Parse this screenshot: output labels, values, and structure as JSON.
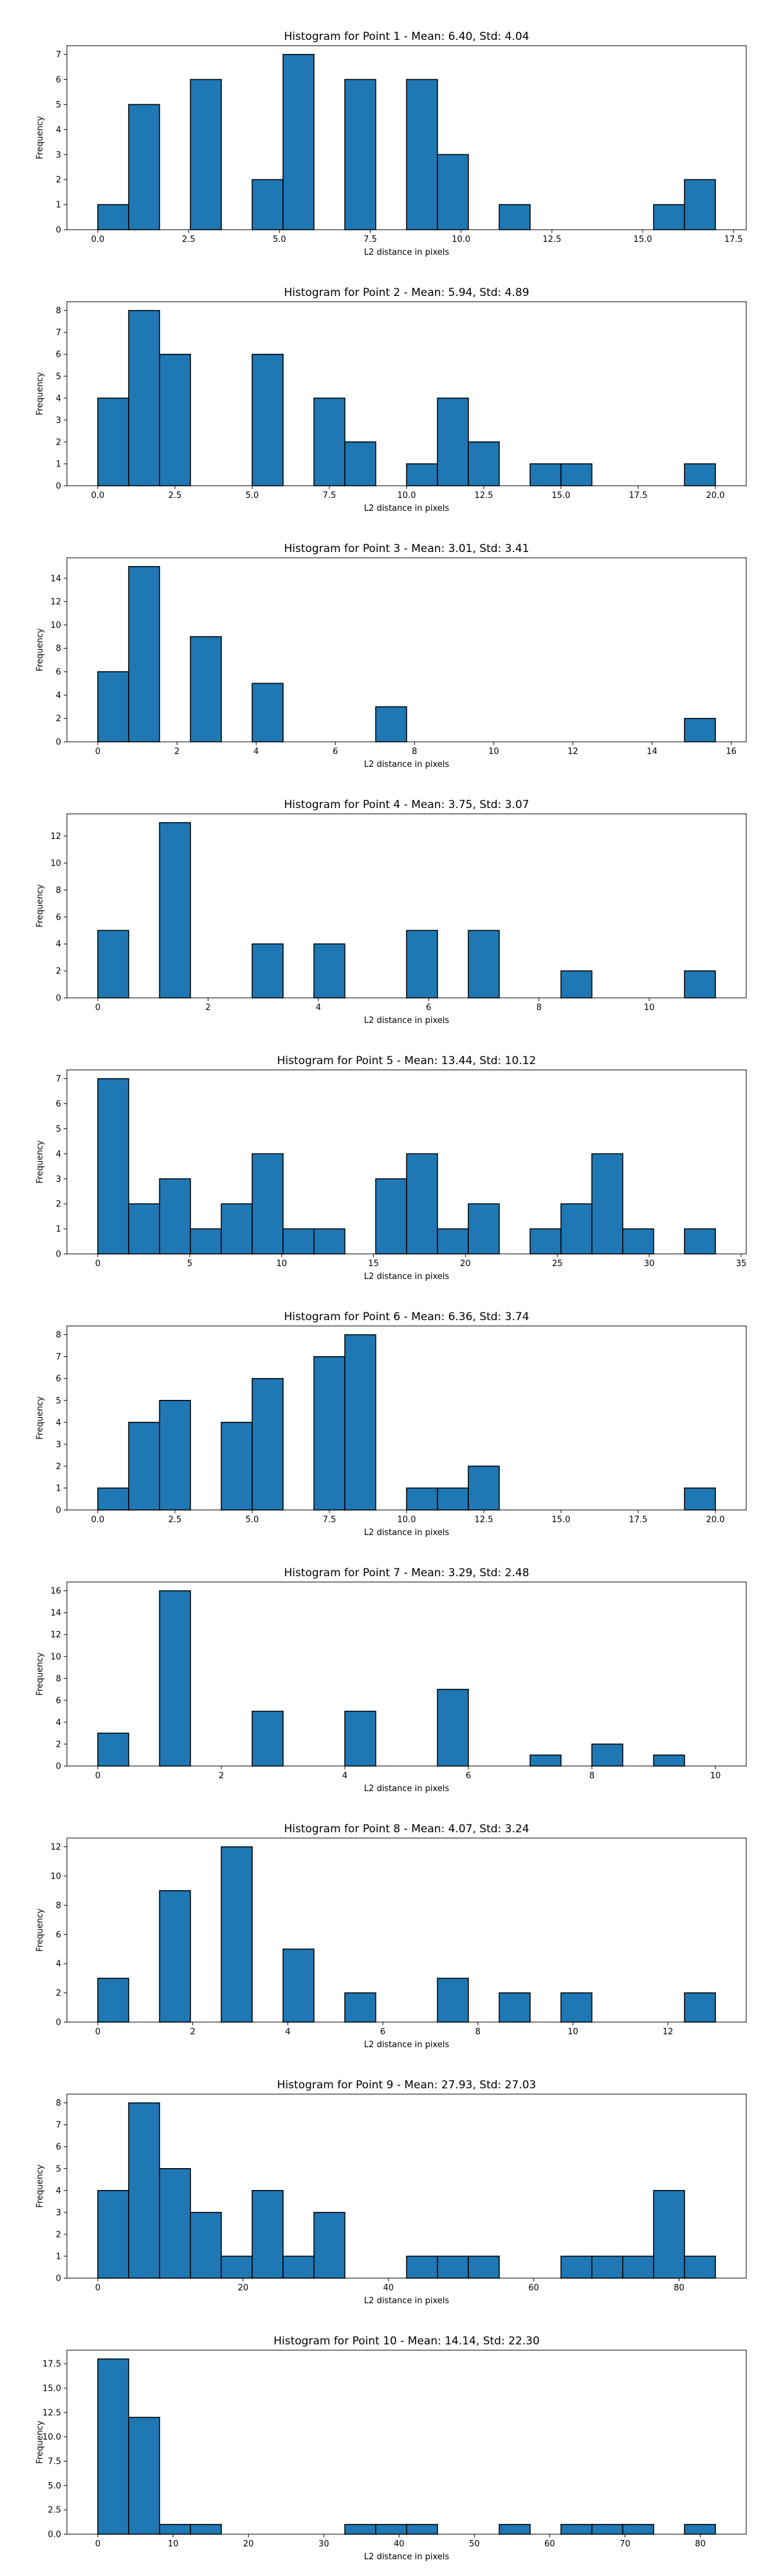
{
  "chart_data": [
    {
      "type": "bar",
      "title": "Histogram for Point 1 - Mean: 6.40, Std: 4.04",
      "xlabel": "L2 distance in pixels",
      "ylabel": "Frequency",
      "xlim": [
        -0.85,
        17.85
      ],
      "ylim": [
        0,
        7.35
      ],
      "xticks": [
        0.0,
        2.5,
        5.0,
        7.5,
        10.0,
        12.5,
        15.0,
        17.5
      ],
      "xtick_labels": [
        "0.0",
        "2.5",
        "5.0",
        "7.5",
        "10.0",
        "12.5",
        "15.0",
        "17.5"
      ],
      "yticks": [
        0,
        1,
        2,
        3,
        4,
        5,
        6,
        7
      ],
      "ytick_labels": [
        "0",
        "1",
        "2",
        "3",
        "4",
        "5",
        "6",
        "7"
      ],
      "bin_edges": [
        0.0,
        0.85,
        1.7,
        2.55,
        3.4,
        4.25,
        5.1,
        5.95,
        6.8,
        7.65,
        8.5,
        9.35,
        10.2,
        11.05,
        11.9,
        12.75,
        13.6,
        14.45,
        15.3,
        16.15,
        17.0
      ],
      "values": [
        1,
        5,
        0,
        6,
        0,
        2,
        7,
        0,
        6,
        0,
        6,
        3,
        0,
        1,
        0,
        0,
        0,
        0,
        1,
        2
      ]
    },
    {
      "type": "bar",
      "title": "Histogram for Point 2 - Mean: 5.94, Std: 4.89",
      "xlabel": "L2 distance in pixels",
      "ylabel": "Frequency",
      "xlim": [
        -1.0,
        21.0
      ],
      "ylim": [
        0,
        8.4
      ],
      "xticks": [
        0.0,
        2.5,
        5.0,
        7.5,
        10.0,
        12.5,
        15.0,
        17.5,
        20.0
      ],
      "xtick_labels": [
        "0.0",
        "2.5",
        "5.0",
        "7.5",
        "10.0",
        "12.5",
        "15.0",
        "17.5",
        "20.0"
      ],
      "yticks": [
        0,
        1,
        2,
        3,
        4,
        5,
        6,
        7,
        8
      ],
      "ytick_labels": [
        "0",
        "1",
        "2",
        "3",
        "4",
        "5",
        "6",
        "7",
        "8"
      ],
      "bin_edges": [
        0.0,
        1.0,
        2.0,
        3.0,
        4.0,
        5.0,
        6.0,
        7.0,
        8.0,
        9.0,
        10.0,
        11.0,
        12.0,
        13.0,
        14.0,
        15.0,
        16.0,
        17.0,
        18.0,
        19.0,
        20.0
      ],
      "values": [
        4,
        8,
        6,
        0,
        0,
        6,
        0,
        4,
        2,
        0,
        1,
        4,
        2,
        0,
        1,
        1,
        0,
        0,
        0,
        1
      ]
    },
    {
      "type": "bar",
      "title": "Histogram for Point 3 - Mean: 3.01, Std: 3.41",
      "xlabel": "L2 distance in pixels",
      "ylabel": "Frequency",
      "xlim": [
        -0.78,
        16.38
      ],
      "ylim": [
        0,
        15.75
      ],
      "xticks": [
        0,
        2,
        4,
        6,
        8,
        10,
        12,
        14,
        16
      ],
      "xtick_labels": [
        "0",
        "2",
        "4",
        "6",
        "8",
        "10",
        "12",
        "14",
        "16"
      ],
      "yticks": [
        0,
        2,
        4,
        6,
        8,
        10,
        12,
        14
      ],
      "ytick_labels": [
        "0",
        "2",
        "4",
        "6",
        "8",
        "10",
        "12",
        "14"
      ],
      "bin_edges": [
        0.0,
        0.78,
        1.56,
        2.34,
        3.12,
        3.9,
        4.68,
        5.46,
        6.24,
        7.02,
        7.8,
        8.58,
        9.36,
        10.14,
        10.92,
        11.7,
        12.48,
        13.26,
        14.04,
        14.82,
        15.6
      ],
      "values": [
        6,
        15,
        0,
        9,
        0,
        5,
        0,
        0,
        0,
        3,
        0,
        0,
        0,
        0,
        0,
        0,
        0,
        0,
        0,
        2
      ]
    },
    {
      "type": "bar",
      "title": "Histogram for Point 4 - Mean: 3.75, Std: 3.07",
      "xlabel": "L2 distance in pixels",
      "ylabel": "Frequency",
      "xlim": [
        -0.56,
        11.76
      ],
      "ylim": [
        0,
        13.65
      ],
      "xticks": [
        0,
        2,
        4,
        6,
        8,
        10
      ],
      "xtick_labels": [
        "0",
        "2",
        "4",
        "6",
        "8",
        "10"
      ],
      "yticks": [
        0,
        2,
        4,
        6,
        8,
        10,
        12
      ],
      "ytick_labels": [
        "0",
        "2",
        "4",
        "6",
        "8",
        "10",
        "12"
      ],
      "bin_edges": [
        0.0,
        0.56,
        1.12,
        1.68,
        2.24,
        2.8,
        3.36,
        3.92,
        4.48,
        5.04,
        5.6,
        6.16,
        6.72,
        7.28,
        7.84,
        8.4,
        8.96,
        9.52,
        10.08,
        10.64,
        11.2
      ],
      "values": [
        5,
        0,
        13,
        0,
        0,
        4,
        0,
        4,
        0,
        0,
        5,
        0,
        5,
        0,
        0,
        2,
        0,
        0,
        0,
        2
      ]
    },
    {
      "type": "bar",
      "title": "Histogram for Point 5 - Mean: 13.44, Std: 10.12",
      "xlabel": "L2 distance in pixels",
      "ylabel": "Frequency",
      "xlim": [
        -1.68,
        35.28
      ],
      "ylim": [
        0,
        7.35
      ],
      "xticks": [
        0,
        5,
        10,
        15,
        20,
        25,
        30,
        35
      ],
      "xtick_labels": [
        "0",
        "5",
        "10",
        "15",
        "20",
        "25",
        "30",
        "35"
      ],
      "yticks": [
        0,
        1,
        2,
        3,
        4,
        5,
        6,
        7
      ],
      "ytick_labels": [
        "0",
        "1",
        "2",
        "3",
        "4",
        "5",
        "6",
        "7"
      ],
      "bin_edges": [
        0.0,
        1.68,
        3.36,
        5.04,
        6.72,
        8.4,
        10.08,
        11.76,
        13.44,
        15.12,
        16.8,
        18.48,
        20.16,
        21.84,
        23.52,
        25.2,
        26.88,
        28.56,
        30.24,
        31.92,
        33.6
      ],
      "values": [
        7,
        2,
        3,
        1,
        2,
        4,
        1,
        1,
        0,
        3,
        4,
        1,
        2,
        0,
        1,
        2,
        4,
        1,
        0,
        1
      ]
    },
    {
      "type": "bar",
      "title": "Histogram for Point 6 - Mean: 6.36, Std: 3.74",
      "xlabel": "L2 distance in pixels",
      "ylabel": "Frequency",
      "xlim": [
        -1.0,
        21.0
      ],
      "ylim": [
        0,
        8.4
      ],
      "xticks": [
        0.0,
        2.5,
        5.0,
        7.5,
        10.0,
        12.5,
        15.0,
        17.5,
        20.0
      ],
      "xtick_labels": [
        "0.0",
        "2.5",
        "5.0",
        "7.5",
        "10.0",
        "12.5",
        "15.0",
        "17.5",
        "20.0"
      ],
      "yticks": [
        0,
        1,
        2,
        3,
        4,
        5,
        6,
        7,
        8
      ],
      "ytick_labels": [
        "0",
        "1",
        "2",
        "3",
        "4",
        "5",
        "6",
        "7",
        "8"
      ],
      "bin_edges": [
        0.0,
        1.0,
        2.0,
        3.0,
        4.0,
        5.0,
        6.0,
        7.0,
        8.0,
        9.0,
        10.0,
        11.0,
        12.0,
        13.0,
        14.0,
        15.0,
        16.0,
        17.0,
        18.0,
        19.0,
        20.0
      ],
      "values": [
        1,
        4,
        5,
        0,
        4,
        6,
        0,
        7,
        8,
        0,
        1,
        1,
        2,
        0,
        0,
        0,
        0,
        0,
        0,
        1
      ]
    },
    {
      "type": "bar",
      "title": "Histogram for Point 7 - Mean: 3.29, Std: 2.48",
      "xlabel": "L2 distance in pixels",
      "ylabel": "Frequency",
      "xlim": [
        -0.5,
        10.5
      ],
      "ylim": [
        0,
        16.8
      ],
      "xticks": [
        0,
        2,
        4,
        6,
        8,
        10
      ],
      "xtick_labels": [
        "0",
        "2",
        "4",
        "6",
        "8",
        "10"
      ],
      "yticks": [
        0,
        2,
        4,
        6,
        8,
        10,
        12,
        14,
        16
      ],
      "ytick_labels": [
        "0",
        "2",
        "4",
        "6",
        "8",
        "10",
        "12",
        "14",
        "16"
      ],
      "bin_edges": [
        0.0,
        0.5,
        1.0,
        1.5,
        2.0,
        2.5,
        3.0,
        3.5,
        4.0,
        4.5,
        5.0,
        5.5,
        6.0,
        6.5,
        7.0,
        7.5,
        8.0,
        8.5,
        9.0,
        9.5,
        10.0
      ],
      "values": [
        3,
        0,
        16,
        0,
        0,
        5,
        0,
        0,
        5,
        0,
        0,
        7,
        0,
        0,
        1,
        0,
        2,
        0,
        1,
        0
      ]
    },
    {
      "type": "bar",
      "title": "Histogram for Point 8 - Mean: 4.07, Std: 3.24",
      "xlabel": "L2 distance in pixels",
      "ylabel": "Frequency",
      "xlim": [
        -0.65,
        13.65
      ],
      "ylim": [
        0,
        12.6
      ],
      "xticks": [
        0,
        2,
        4,
        6,
        8,
        10,
        12
      ],
      "xtick_labels": [
        "0",
        "2",
        "4",
        "6",
        "8",
        "10",
        "12"
      ],
      "yticks": [
        0,
        2,
        4,
        6,
        8,
        10,
        12
      ],
      "ytick_labels": [
        "0",
        "2",
        "4",
        "6",
        "8",
        "10",
        "12"
      ],
      "bin_edges": [
        0.0,
        0.65,
        1.3,
        1.95,
        2.6,
        3.25,
        3.9,
        4.55,
        5.2,
        5.85,
        6.5,
        7.15,
        7.8,
        8.45,
        9.1,
        9.75,
        10.4,
        11.05,
        11.7,
        12.35,
        13.0
      ],
      "values": [
        3,
        0,
        9,
        0,
        12,
        0,
        5,
        0,
        2,
        0,
        0,
        3,
        0,
        2,
        0,
        2,
        0,
        0,
        0,
        2
      ]
    },
    {
      "type": "bar",
      "title": "Histogram for Point 9 - Mean: 27.93, Std: 27.03",
      "xlabel": "L2 distance in pixels",
      "ylabel": "Frequency",
      "xlim": [
        -4.25,
        89.25
      ],
      "ylim": [
        0,
        8.4
      ],
      "xticks": [
        0,
        20,
        40,
        60,
        80
      ],
      "xtick_labels": [
        "0",
        "20",
        "40",
        "60",
        "80"
      ],
      "yticks": [
        0,
        1,
        2,
        3,
        4,
        5,
        6,
        7,
        8
      ],
      "ytick_labels": [
        "0",
        "1",
        "2",
        "3",
        "4",
        "5",
        "6",
        "7",
        "8"
      ],
      "bin_edges": [
        0.0,
        4.25,
        8.5,
        12.75,
        17.0,
        21.25,
        25.5,
        29.75,
        34.0,
        38.25,
        42.5,
        46.75,
        51.0,
        55.25,
        59.5,
        63.75,
        68.0,
        72.25,
        76.5,
        80.75,
        85.0
      ],
      "values": [
        4,
        8,
        5,
        3,
        1,
        4,
        1,
        3,
        0,
        0,
        1,
        1,
        1,
        0,
        0,
        1,
        1,
        1,
        4,
        1
      ]
    },
    {
      "type": "bar",
      "title": "Histogram for Point 10 - Mean: 14.14, Std: 22.30",
      "xlabel": "L2 distance in pixels",
      "ylabel": "Frequency",
      "xlim": [
        -4.1,
        86.1
      ],
      "ylim": [
        0,
        18.9
      ],
      "xticks": [
        0,
        10,
        20,
        30,
        40,
        50,
        60,
        70,
        80
      ],
      "xtick_labels": [
        "0",
        "10",
        "20",
        "30",
        "40",
        "50",
        "60",
        "70",
        "80"
      ],
      "yticks": [
        0,
        2.5,
        5.0,
        7.5,
        10.0,
        12.5,
        15.0,
        17.5
      ],
      "ytick_labels": [
        "0.0",
        "2.5",
        "5.0",
        "7.5",
        "10.0",
        "12.5",
        "15.0",
        "17.5"
      ],
      "bin_edges": [
        0.0,
        4.1,
        8.2,
        12.3,
        16.4,
        20.5,
        24.6,
        28.7,
        32.8,
        36.9,
        41.0,
        45.1,
        49.2,
        53.3,
        57.4,
        61.5,
        65.6,
        69.7,
        73.8,
        77.9,
        82.0
      ],
      "values": [
        18,
        12,
        1,
        1,
        0,
        0,
        0,
        0,
        1,
        1,
        1,
        0,
        0,
        1,
        0,
        1,
        1,
        1,
        0,
        1
      ]
    }
  ],
  "colors": {
    "bar_fill": "#1f77b4",
    "bar_edge": "#000000",
    "axes": "#000000"
  }
}
